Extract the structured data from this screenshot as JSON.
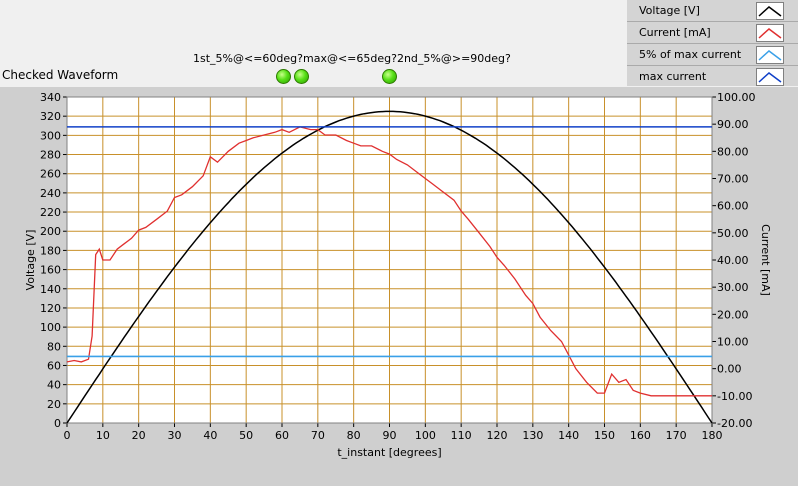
{
  "chart_title": "Checked Waveform",
  "indicator_caption": "1st_5%@<=60deg?max@<=65deg?2nd_5%@>=90deg?",
  "indicators": [
    {
      "name": "1st_5%@<=60deg?",
      "state": "on",
      "color": "#4cd400"
    },
    {
      "name": "max@<=65deg?",
      "state": "on",
      "color": "#4cd400"
    },
    {
      "name": "2nd_5%@>=90deg?",
      "state": "on",
      "color": "#4cd400"
    }
  ],
  "legend": [
    {
      "label": "Voltage [V]",
      "color": "#000000"
    },
    {
      "label": "Current [mA]",
      "color": "#e03030"
    },
    {
      "label": "5% of max current",
      "color": "#3aa0e8"
    },
    {
      "label": "max current",
      "color": "#1040c8"
    }
  ],
  "chart_data": {
    "type": "line",
    "xlabel": "t_instant [degrees]",
    "ylabel": "Voltage [V]",
    "y2label": "Current [mA]",
    "xlim": [
      0,
      180
    ],
    "ylim": [
      0,
      340
    ],
    "y2lim": [
      -20,
      100
    ],
    "grid": true,
    "xticks": [
      0,
      10,
      20,
      30,
      40,
      50,
      60,
      70,
      80,
      90,
      100,
      110,
      120,
      130,
      140,
      150,
      160,
      170,
      180
    ],
    "yticks": [
      0,
      20,
      40,
      60,
      80,
      100,
      120,
      140,
      160,
      180,
      200,
      220,
      240,
      260,
      280,
      300,
      320,
      340
    ],
    "y2ticks": [
      "-20.00",
      "-10.00",
      "0.00",
      "10.00",
      "20.00",
      "30.00",
      "40.00",
      "50.00",
      "60.00",
      "70.00",
      "80.00",
      "90.00",
      "100.00"
    ],
    "y2tick_values": [
      -20,
      -10,
      0,
      10,
      20,
      30,
      40,
      50,
      60,
      70,
      80,
      90,
      100
    ],
    "series": [
      {
        "name": "Voltage [V]",
        "axis": "left",
        "color": "#000000",
        "function": "sine",
        "amplitude": 325,
        "period_deg": 360
      },
      {
        "name": "Current [mA]",
        "axis": "right",
        "color": "#e03030",
        "x": [
          0,
          2,
          4,
          6,
          7,
          8,
          9,
          10,
          12,
          14,
          16,
          18,
          20,
          22,
          25,
          28,
          30,
          32,
          35,
          38,
          40,
          42,
          45,
          48,
          50,
          52,
          55,
          58,
          60,
          62,
          65,
          68,
          70,
          72,
          75,
          78,
          80,
          82,
          85,
          88,
          90,
          92,
          95,
          98,
          100,
          102,
          105,
          108,
          110,
          112,
          115,
          118,
          120,
          122,
          125,
          128,
          130,
          132,
          135,
          138,
          140,
          142,
          145,
          148,
          150,
          152,
          154,
          156,
          158,
          160,
          163,
          166,
          170,
          174,
          178,
          180
        ],
        "y": [
          2.5,
          3,
          2.5,
          3.5,
          12,
          42,
          44,
          40,
          40,
          44,
          46,
          48,
          51,
          52,
          55,
          58,
          63,
          64,
          67,
          71,
          78,
          76,
          80,
          83,
          84,
          85,
          86,
          87,
          88,
          87,
          89,
          88,
          88,
          86,
          86,
          84,
          83,
          82,
          82,
          80,
          79,
          77,
          75,
          72,
          70,
          68,
          65,
          62,
          58,
          55,
          50,
          45,
          41,
          38,
          33,
          27,
          24,
          19,
          14,
          10,
          5,
          0,
          -5,
          -9,
          -9,
          -2,
          -5,
          -4,
          -8,
          -9,
          -10,
          -10,
          -10,
          -10,
          -10,
          -10
        ]
      },
      {
        "name": "5% of max current",
        "axis": "right",
        "color": "#3aa0e8",
        "constant": 4.5
      },
      {
        "name": "max current",
        "axis": "right",
        "color": "#1040c8",
        "constant": 89
      }
    ]
  }
}
